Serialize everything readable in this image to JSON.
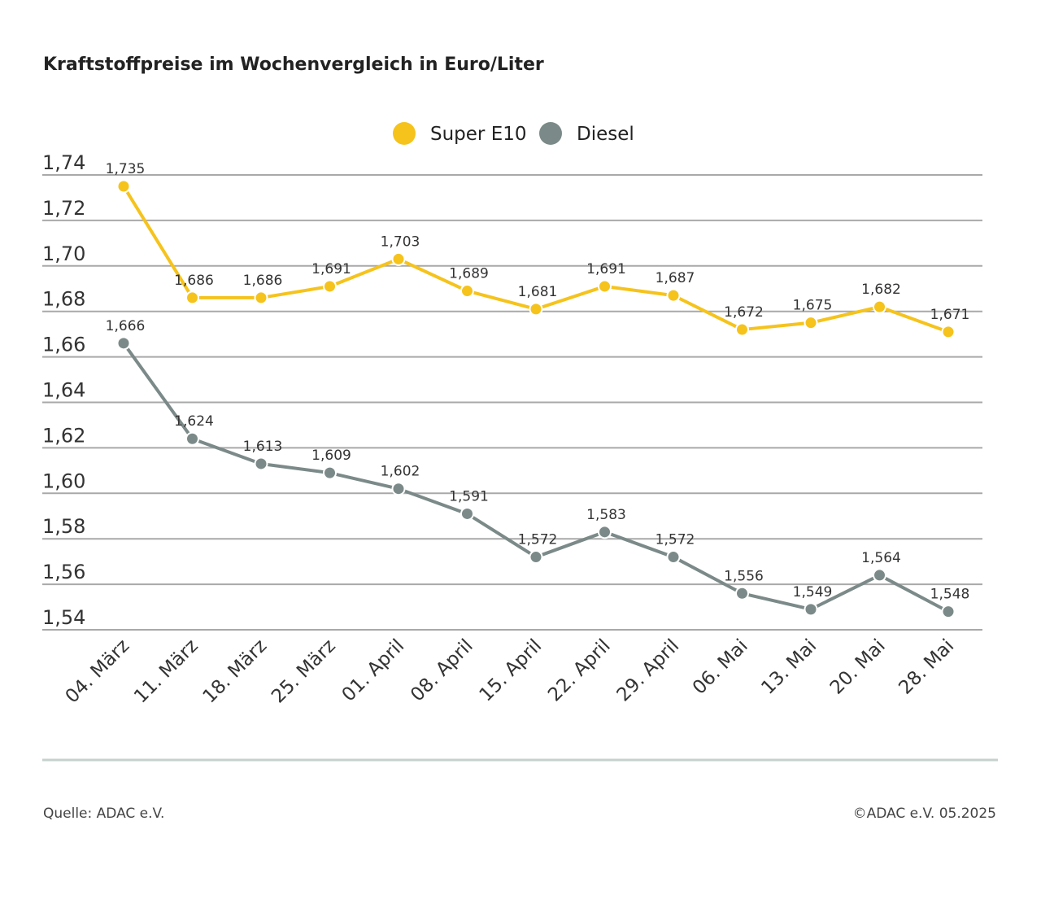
{
  "chart_data": {
    "type": "line",
    "title": "Kraftstoffpreise im Wochenvergleich in Euro/Liter",
    "categories": [
      "04. März",
      "11. März",
      "18. März",
      "25. März",
      "01. April",
      "08. April",
      "15. April",
      "22. April",
      "29. April",
      "06. Mai",
      "13. Mai",
      "20. Mai",
      "28. Mai"
    ],
    "series": [
      {
        "name": "Super E10",
        "color": "#F5C31C",
        "values": [
          1.735,
          1.686,
          1.686,
          1.691,
          1.703,
          1.689,
          1.681,
          1.691,
          1.687,
          1.672,
          1.675,
          1.682,
          1.671
        ],
        "labels": [
          "1,735",
          "1,686",
          "1,686",
          "1,691",
          "1,703",
          "1,689",
          "1,681",
          "1,691",
          "1,687",
          "1,672",
          "1,675",
          "1,682",
          "1,671"
        ]
      },
      {
        "name": "Diesel",
        "color": "#7B8A88",
        "values": [
          1.666,
          1.624,
          1.613,
          1.609,
          1.602,
          1.591,
          1.572,
          1.583,
          1.572,
          1.556,
          1.549,
          1.564,
          1.548
        ],
        "labels": [
          "1,666",
          "1,624",
          "1,613",
          "1,609",
          "1,602",
          "1,591",
          "1,572",
          "1,583",
          "1,572",
          "1,556",
          "1,549",
          "1,564",
          "1,548"
        ]
      }
    ],
    "ylim": [
      1.54,
      1.74
    ],
    "yticks": [
      1.74,
      1.72,
      1.7,
      1.68,
      1.66,
      1.64,
      1.62,
      1.6,
      1.58,
      1.56,
      1.54
    ],
    "ytick_labels": [
      "1,74",
      "1,72",
      "1,70",
      "1,68",
      "1,66",
      "1,64",
      "1,62",
      "1,60",
      "1,58",
      "1,56",
      "1,54"
    ],
    "grid": true,
    "legend_position": "top-center"
  },
  "footer": {
    "source": "Quelle: ADAC e.V.",
    "copyright": "©ADAC e.V. 05.2025"
  }
}
